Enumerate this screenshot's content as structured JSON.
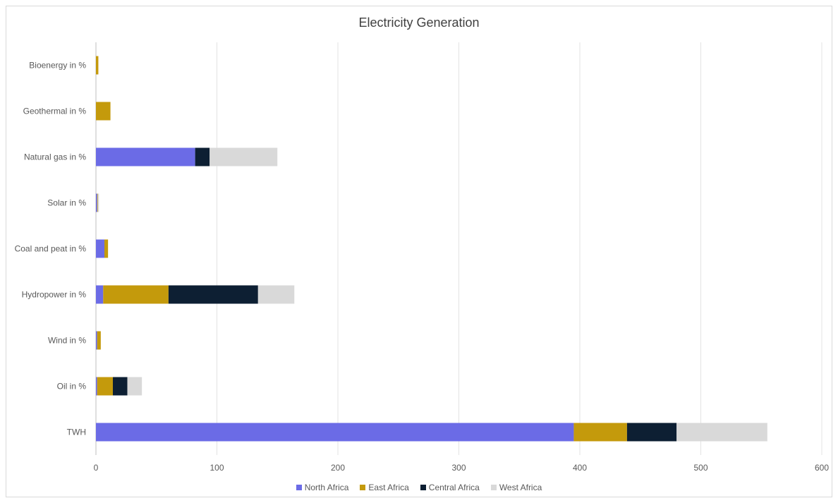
{
  "chart_data": {
    "type": "bar",
    "orientation": "horizontal",
    "stacked": true,
    "title": "Electricity Generation",
    "xlabel": "",
    "ylabel": "",
    "xlim": [
      0,
      600
    ],
    "xticks": [
      0,
      100,
      200,
      300,
      400,
      500,
      600
    ],
    "grid": true,
    "legend_position": "bottom",
    "categories": [
      "Bioenergy in %",
      "Geothermal in %",
      "Natural gas  in %",
      "Solar in %",
      "Coal and peat in %",
      "Hydropower in %",
      "Wind in %",
      "Oil in %",
      "TWH"
    ],
    "series": [
      {
        "name": "North Africa",
        "color": "#6b6be6",
        "values": [
          0,
          0,
          82,
          1,
          7,
          6,
          1,
          1,
          395
        ]
      },
      {
        "name": "East Africa",
        "color": "#c49a0c",
        "values": [
          2,
          12,
          0,
          0.5,
          3,
          54,
          3,
          13,
          44
        ]
      },
      {
        "name": "Central Africa",
        "color": "#0d1f33",
        "values": [
          0,
          0,
          12,
          0,
          0,
          74,
          0,
          12,
          41
        ]
      },
      {
        "name": "West Africa",
        "color": "#d9d9d9",
        "values": [
          0,
          0,
          56,
          1,
          0,
          30,
          0,
          12,
          75
        ]
      }
    ]
  }
}
